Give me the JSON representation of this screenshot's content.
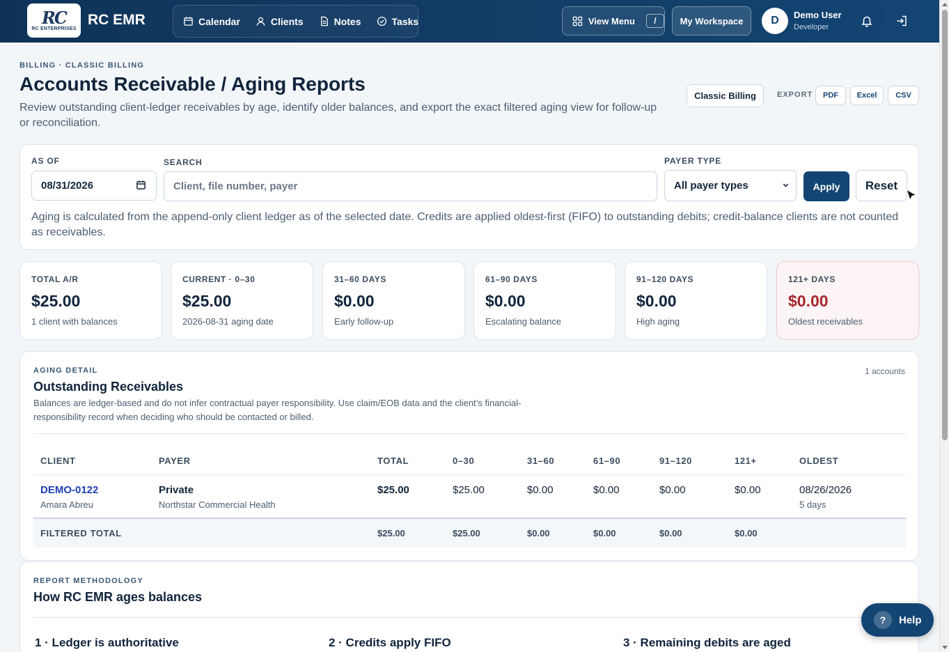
{
  "nav": {
    "logo_mark": "RC",
    "logo_sub": "RC ENTERPRISES",
    "brand": "RC EMR",
    "links": [
      {
        "label": "Calendar",
        "icon": "calendar-icon"
      },
      {
        "label": "Clients",
        "icon": "user-icon"
      },
      {
        "label": "Notes",
        "icon": "document-icon"
      },
      {
        "label": "Tasks",
        "icon": "check-circle-icon"
      }
    ],
    "view_menu": "View Menu",
    "view_menu_kbd": "/",
    "workspace": "My Workspace",
    "avatar_initial": "D",
    "user_name": "Demo User",
    "user_role": "Developer"
  },
  "header": {
    "eyebrow": "BILLING · CLASSIC BILLING",
    "title": "Accounts Receivable / Aging Reports",
    "description": "Review outstanding client-ledger receivables by age, identify older balances, and export the exact filtered aging view for follow-up or reconciliation.",
    "classic_billing": "Classic Billing",
    "export_label": "EXPORT",
    "export_pdf": "PDF",
    "export_excel": "Excel",
    "export_csv": "CSV"
  },
  "filters": {
    "as_of_label": "AS OF",
    "as_of_value": "08/31/2026",
    "search_label": "SEARCH",
    "search_placeholder": "Client, file number, payer",
    "payer_type_label": "PAYER TYPE",
    "payer_type_value": "All payer types",
    "apply": "Apply",
    "reset": "Reset",
    "note": "Aging is calculated from the append-only client ledger as of the selected date. Credits are applied oldest-first (FIFO) to outstanding debits; credit-balance clients are not counted as receivables."
  },
  "stats": [
    {
      "label": "TOTAL A/R",
      "value": "$25.00",
      "sub": "1 client with balances"
    },
    {
      "label": "CURRENT · 0–30",
      "value": "$25.00",
      "sub": "2026-08-31 aging date"
    },
    {
      "label": "31–60 DAYS",
      "value": "$0.00",
      "sub": "Early follow-up"
    },
    {
      "label": "61–90 DAYS",
      "value": "$0.00",
      "sub": "Escalating balance"
    },
    {
      "label": "91–120 DAYS",
      "value": "$0.00",
      "sub": "High aging"
    },
    {
      "label": "121+ DAYS",
      "value": "$0.00",
      "sub": "Oldest receivables"
    }
  ],
  "detail": {
    "eyebrow": "AGING DETAIL",
    "title": "Outstanding Receivables",
    "count": "1 accounts",
    "description": "Balances are ledger-based and do not infer contractual payer responsibility. Use claim/EOB data and the client’s financial-responsibility record when deciding who should be contacted or billed.",
    "columns": [
      "CLIENT",
      "PAYER",
      "TOTAL",
      "0–30",
      "31–60",
      "61–90",
      "91–120",
      "121+",
      "OLDEST"
    ],
    "rows": [
      {
        "client_id": "DEMO-0122",
        "client_name": "Amara Abreu",
        "payer_type": "Private",
        "payer_name": "Northstar Commercial Health",
        "total": "$25.00",
        "d0_30": "$25.00",
        "d31_60": "$0.00",
        "d61_90": "$0.00",
        "d91_120": "$0.00",
        "d121": "$0.00",
        "oldest_date": "08/26/2026",
        "oldest_days": "5 days"
      }
    ],
    "total_label": "FILTERED TOTAL",
    "totals": {
      "total": "$25.00",
      "d0_30": "$25.00",
      "d31_60": "$0.00",
      "d61_90": "$0.00",
      "d91_120": "$0.00",
      "d121": "$0.00"
    }
  },
  "methodology": {
    "eyebrow": "REPORT METHODOLOGY",
    "title": "How RC EMR ages balances",
    "steps": [
      "1 · Ledger is authoritative",
      "2 · Credits apply FIFO",
      "3 · Remaining debits are aged"
    ]
  },
  "help": {
    "icon": "?",
    "label": "Help"
  },
  "colors": {
    "primary": "#134573",
    "alert": "#a5282f",
    "link": "#1f3fb4"
  }
}
